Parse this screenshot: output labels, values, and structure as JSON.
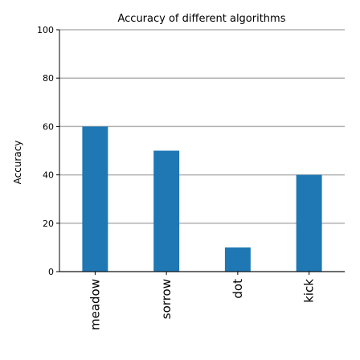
{
  "chart_data": {
    "type": "bar",
    "title": "Accuracy of different algorithms",
    "xlabel": "",
    "ylabel": "Accuracy",
    "categories": [
      "meadow",
      "sorrow",
      "dot",
      "kick"
    ],
    "values": [
      60,
      50,
      10,
      40
    ],
    "ylim": [
      0,
      100
    ],
    "yticks": [
      "0",
      "20",
      "40",
      "60",
      "80",
      "100"
    ],
    "grid": "horizontal",
    "bar_color": "#1f77b4"
  }
}
